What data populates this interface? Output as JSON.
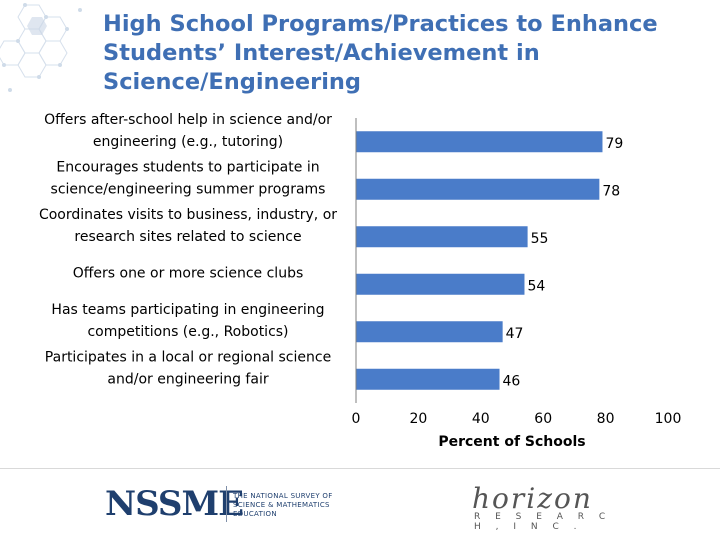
{
  "title": "High School Programs/Practices to Enhance Students’ Interest/Achievement in Science/Engineering",
  "chart_data": {
    "type": "bar",
    "orientation": "horizontal",
    "categories": [
      [
        "Offers after-school help in science and/or",
        "engineering (e.g., tutoring)"
      ],
      [
        "Encourages students to participate in",
        "science/engineering summer programs"
      ],
      [
        "Coordinates visits to business, industry, or",
        "research sites related to science"
      ],
      [
        "Offers one or more science clubs"
      ],
      [
        "Has teams participating in engineering",
        "competitions (e.g., Robotics)"
      ],
      [
        "Participates in a local or regional science",
        "and/or engineering fair"
      ]
    ],
    "values": [
      79,
      78,
      55,
      54,
      47,
      46
    ],
    "xlabel": "Percent of Schools",
    "xlim": [
      0,
      100
    ],
    "xticks": [
      0,
      20,
      40,
      60,
      80,
      100
    ],
    "bar_color": "#4a7cc9",
    "grid": false
  },
  "footer": {
    "logo_left_text": "NSSME",
    "logo_left_subtitle": [
      "THE NATIONAL SURVEY OF",
      "SCIENCE & MATHEMATICS EDUCATION"
    ],
    "logo_right_text": "horizon",
    "logo_right_subtitle": "R E S E A R C H , I N C ."
  }
}
